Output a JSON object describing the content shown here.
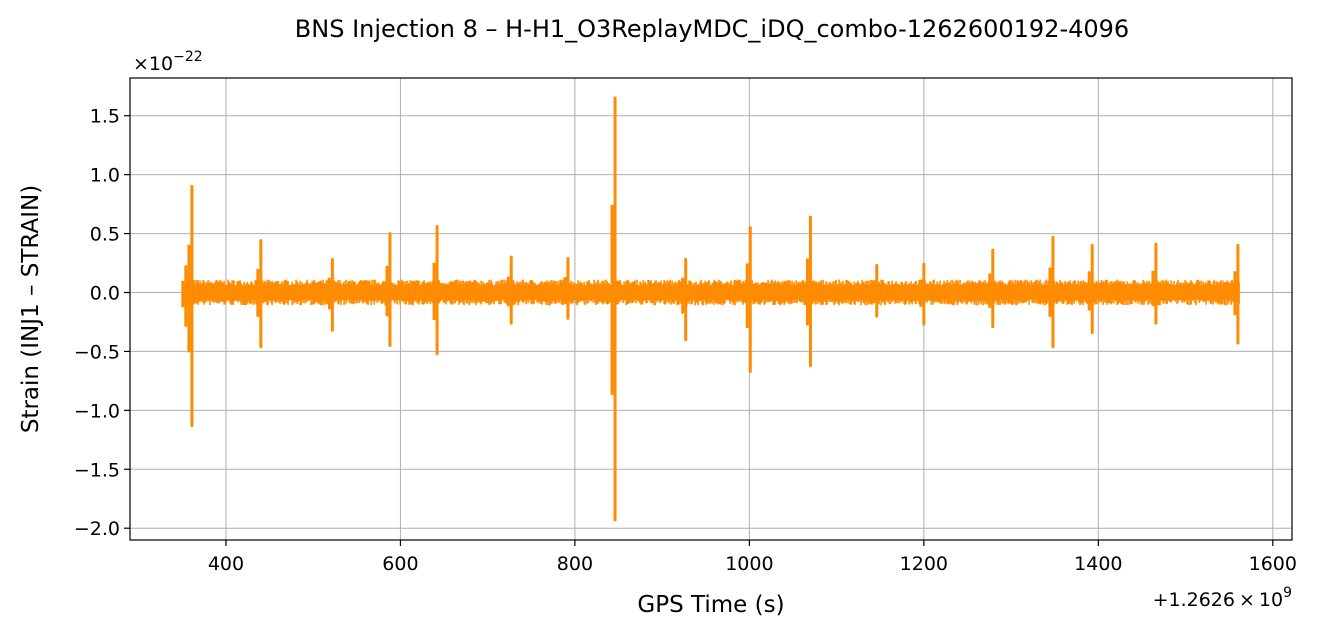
{
  "chart_data": {
    "type": "line",
    "title": "BNS Injection 8 – H-H1_O3ReplayMDC_iDQ_combo-1262600192-4096",
    "xlabel": "GPS Time (s)",
    "ylabel": "Strain (INJ1 – STRAIN)",
    "x_offset_text_prefix": "+1.2626",
    "x_offset_text_times": "×",
    "x_offset_text_base": "10",
    "x_offset_text_exp": "9",
    "y_multiplier_prefix": "×10",
    "y_multiplier_exp": "−22",
    "xlim": [
      290,
      1622
    ],
    "ylim": [
      -2.1,
      1.82
    ],
    "x_ticks": [
      400,
      600,
      800,
      1000,
      1200,
      1400,
      1600
    ],
    "x_tick_labels": [
      "400",
      "600",
      "800",
      "1000",
      "1200",
      "1400",
      "1600"
    ],
    "y_ticks": [
      1.5,
      1.0,
      0.5,
      0.0,
      -0.5,
      -1.0,
      -1.5,
      -2.0
    ],
    "y_tick_labels": [
      "1.5",
      "1.0",
      "0.5",
      "0.0",
      "−0.5",
      "−1.0",
      "−1.5",
      "−2.0"
    ],
    "grid": true,
    "series": [
      {
        "color": "#ff8c00",
        "x_range": [
          352,
          1562
        ],
        "noise_envelope_upper": 0.11,
        "noise_envelope_lower": -0.11,
        "spikes": [
          {
            "x": 354,
            "high": 0.22,
            "low": -0.28
          },
          {
            "x": 361,
            "high": 0.9,
            "low": -1.13
          },
          {
            "x": 440,
            "high": 0.44,
            "low": -0.46
          },
          {
            "x": 522,
            "high": 0.28,
            "low": -0.32
          },
          {
            "x": 588,
            "high": 0.5,
            "low": -0.45
          },
          {
            "x": 642,
            "high": 0.56,
            "low": -0.52
          },
          {
            "x": 727,
            "high": 0.3,
            "low": -0.26
          },
          {
            "x": 792,
            "high": 0.29,
            "low": -0.22
          },
          {
            "x": 846,
            "high": 1.65,
            "low": -1.93
          },
          {
            "x": 927,
            "high": 0.28,
            "low": -0.4
          },
          {
            "x": 1001,
            "high": 0.55,
            "low": -0.67
          },
          {
            "x": 1070,
            "high": 0.64,
            "low": -0.62
          },
          {
            "x": 1146,
            "high": 0.23,
            "low": -0.2
          },
          {
            "x": 1200,
            "high": 0.24,
            "low": -0.27
          },
          {
            "x": 1279,
            "high": 0.36,
            "low": -0.29
          },
          {
            "x": 1348,
            "high": 0.47,
            "low": -0.46
          },
          {
            "x": 1393,
            "high": 0.4,
            "low": -0.34
          },
          {
            "x": 1466,
            "high": 0.41,
            "low": -0.26
          },
          {
            "x": 1560,
            "high": 0.4,
            "low": -0.43
          }
        ]
      }
    ]
  }
}
